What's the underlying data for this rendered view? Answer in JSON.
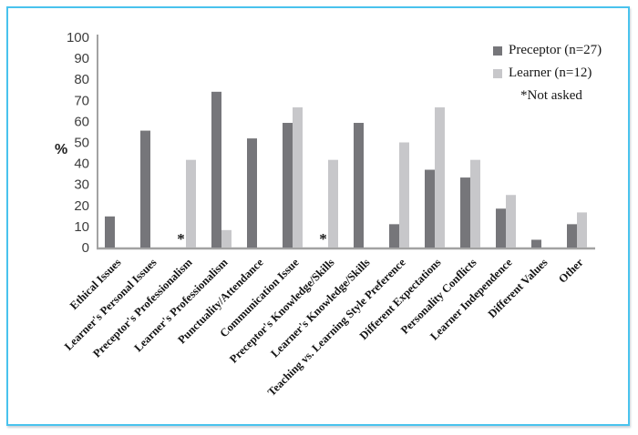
{
  "frame": {
    "border_color": "#49c3ee",
    "background": "#ffffff"
  },
  "chart_data": {
    "type": "bar",
    "title": "",
    "ylabel": "%",
    "xlabel": "",
    "ylim": [
      0,
      100
    ],
    "ytick_step": 10,
    "grid": false,
    "legend_position": "top-right",
    "axis_color": "#a2a2a2",
    "categories": [
      "Ethical Issues",
      "Learner's Personal Issues",
      "Preceptor's Professionalism",
      "Learner's Professionalism",
      "Punctuality/Attendance",
      "Communication Issue",
      "Preceptor's Knowledge/Skills",
      "Learner's Knowledge/Skills",
      "Teaching vs. Learning Style Preference",
      "Different Expectations",
      "Personality Conflicts",
      "Learner Independence",
      "Different Values",
      "Other"
    ],
    "series": [
      {
        "name": "Preceptor (n=27)",
        "color": "#76767a",
        "values": [
          14.8,
          55.6,
          null,
          74.1,
          51.9,
          59.3,
          null,
          59.3,
          11.1,
          37.0,
          33.3,
          18.5,
          3.7,
          11.1
        ]
      },
      {
        "name": "Learner (n=12)",
        "color": "#c7c7ca",
        "values": [
          0,
          0,
          41.7,
          8.3,
          0,
          66.7,
          41.7,
          0,
          50.0,
          66.7,
          41.7,
          25.0,
          0,
          16.7
        ]
      }
    ],
    "not_asked_marker": "*",
    "not_asked_note": "*Not asked"
  }
}
